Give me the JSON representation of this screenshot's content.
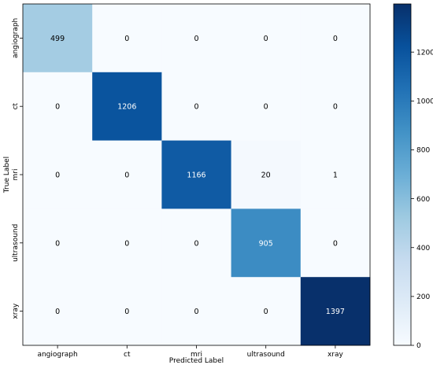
{
  "chart_data": {
    "type": "heatmap",
    "title": "",
    "xlabel": "Predicted Label",
    "ylabel": "True Label",
    "x_categories": [
      "angiograph",
      "ct",
      "mri",
      "ultrasound",
      "xray"
    ],
    "y_categories": [
      "angiograph",
      "ct",
      "mri",
      "ultrasound",
      "xray"
    ],
    "matrix": [
      [
        499,
        0,
        0,
        0,
        0
      ],
      [
        0,
        1206,
        0,
        0,
        0
      ],
      [
        0,
        0,
        1166,
        20,
        1
      ],
      [
        0,
        0,
        0,
        905,
        0
      ],
      [
        0,
        0,
        0,
        0,
        1397
      ]
    ],
    "colormap": "Blues",
    "color_range": [
      0,
      1397
    ],
    "colorbar": {
      "ticks": [
        0,
        200,
        400,
        600,
        800,
        1000,
        1200
      ],
      "tick_labels": [
        "0",
        "200",
        "400",
        "600",
        "800",
        "1000",
        "1200"
      ]
    },
    "grid": false,
    "legend": "colorbar-right"
  }
}
